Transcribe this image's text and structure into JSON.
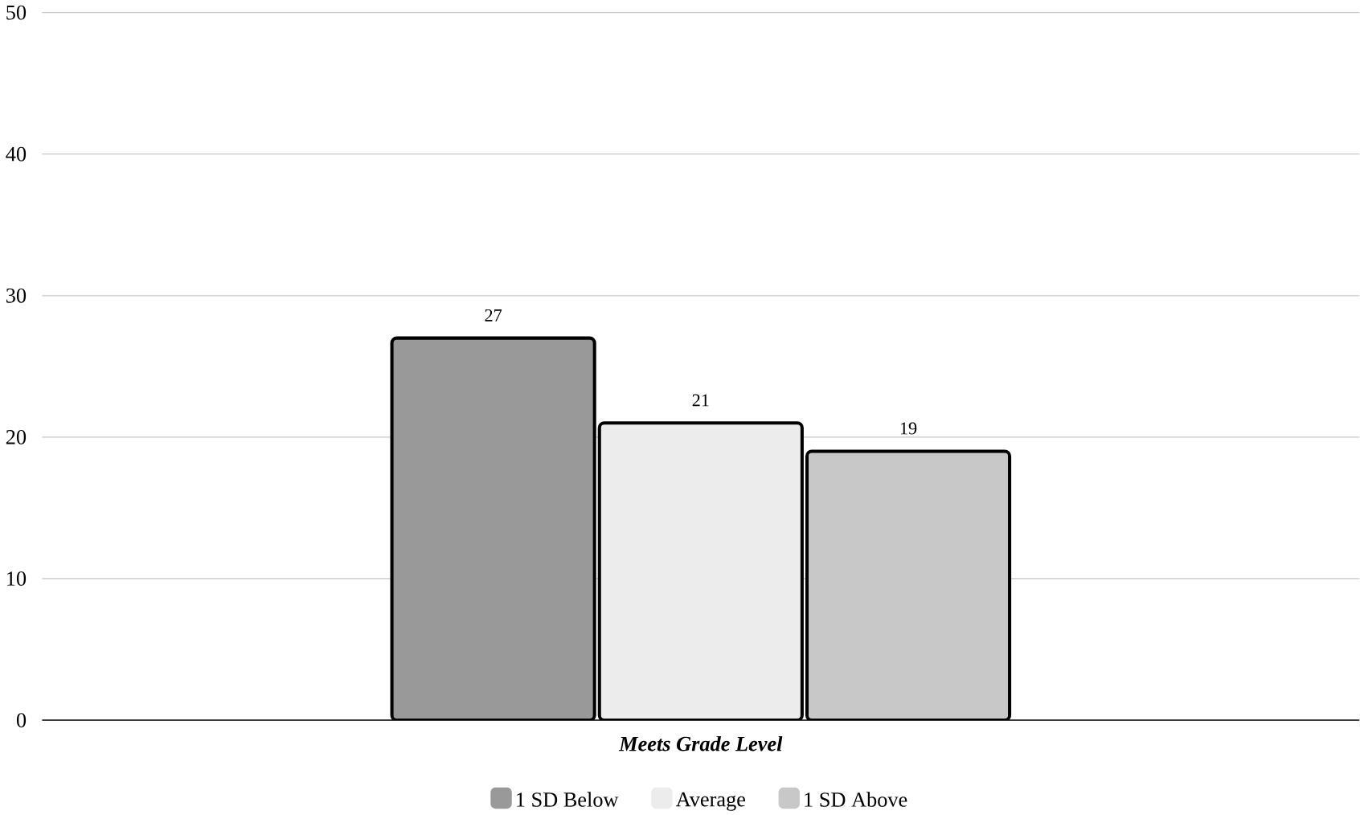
{
  "chart_data": {
    "type": "bar",
    "categories": [
      "Meets Grade Level"
    ],
    "series": [
      {
        "name": "1 SD Below",
        "color": "#999999",
        "values": [
          27
        ]
      },
      {
        "name": "Average",
        "color": "#ececec",
        "values": [
          21
        ]
      },
      {
        "name": "1 SD Above",
        "color": "#c8c8c8",
        "values": [
          19
        ]
      }
    ],
    "ylim": [
      0,
      50
    ],
    "yticks": [
      0,
      10,
      20,
      30,
      40,
      50
    ],
    "grid": "y",
    "legend": "bottom",
    "data_labels": true
  }
}
